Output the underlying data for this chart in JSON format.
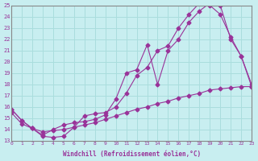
{
  "xlabel": "Windchill (Refroidissement éolien,°C)",
  "bg_color": "#c8eef0",
  "grid_color": "#aadddd",
  "line_color": "#993399",
  "xlim": [
    0,
    23
  ],
  "ylim": [
    13,
    25
  ],
  "yticks": [
    13,
    14,
    15,
    16,
    17,
    18,
    19,
    20,
    21,
    22,
    23,
    24,
    25
  ],
  "xticks": [
    0,
    1,
    2,
    3,
    4,
    5,
    6,
    7,
    8,
    9,
    10,
    11,
    12,
    13,
    14,
    15,
    16,
    17,
    18,
    19,
    20,
    21,
    22,
    23
  ],
  "line1_x": [
    0,
    1,
    2,
    3,
    4,
    5,
    6,
    7,
    8,
    9,
    10,
    11,
    12,
    13,
    14,
    15,
    16,
    17,
    18,
    19,
    20,
    21,
    22,
    23
  ],
  "line1_y": [
    15.8,
    14.8,
    14.1,
    13.5,
    14.0,
    14.4,
    14.6,
    14.7,
    14.9,
    15.3,
    16.7,
    19.0,
    19.3,
    21.5,
    18.0,
    21.0,
    22.0,
    23.5,
    24.5,
    25.2,
    25.0,
    22.0,
    20.5,
    18.0
  ],
  "line2_x": [
    0,
    1,
    2,
    3,
    4,
    5,
    6,
    7,
    8,
    9,
    10,
    11,
    12,
    13,
    14,
    15,
    16,
    17,
    18,
    19,
    20,
    21,
    22,
    23
  ],
  "line2_y": [
    15.8,
    14.8,
    14.1,
    13.4,
    13.3,
    13.4,
    14.2,
    15.2,
    15.4,
    15.5,
    16.0,
    17.2,
    18.8,
    19.5,
    21.0,
    21.4,
    23.0,
    24.2,
    25.2,
    25.0,
    24.2,
    22.2,
    20.5,
    17.8
  ],
  "line3_x": [
    0,
    1,
    2,
    3,
    4,
    5,
    6,
    7,
    8,
    9,
    10,
    11,
    12,
    13,
    14,
    15,
    16,
    17,
    18,
    19,
    20,
    21,
    22,
    23
  ],
  "line3_y": [
    15.5,
    14.5,
    14.1,
    13.8,
    13.9,
    14.0,
    14.2,
    14.4,
    14.6,
    14.9,
    15.2,
    15.5,
    15.8,
    16.0,
    16.3,
    16.5,
    16.8,
    17.0,
    17.2,
    17.5,
    17.6,
    17.7,
    17.8,
    17.8
  ]
}
